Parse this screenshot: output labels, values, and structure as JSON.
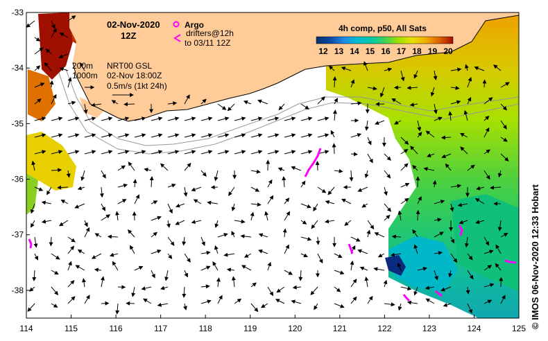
{
  "title": {
    "date": "02-Nov-2020",
    "hour": "12Z"
  },
  "legend": {
    "argo_label": "Argo",
    "drifters_label": "drifters@12h",
    "drifters_until": "to 03/11 12Z",
    "argo_color": "#ff00ff",
    "drifter_color": "#ff00ff"
  },
  "colorbar": {
    "title": "4h comp, p50, All Sats",
    "ticks": [
      "12",
      "13",
      "14",
      "15",
      "16",
      "17",
      "18",
      "19",
      "20"
    ],
    "colors": [
      "#08306b",
      "#0d47a1",
      "#1565c0",
      "#00acc1",
      "#00c9a7",
      "#3cd25a",
      "#7ed321",
      "#c8e000",
      "#f0c000",
      "#f08000",
      "#d84000",
      "#a01000",
      "#6b0000"
    ]
  },
  "info": {
    "isobath_200": "200m",
    "isobath_1000": "1000m",
    "source": "NRT00 GSL",
    "time": "02-Nov 18:00Z",
    "scale": "0.5m/s (1kt 24h)"
  },
  "axes": {
    "x_ticks": [
      "114",
      "115",
      "116",
      "117",
      "118",
      "119",
      "120",
      "121",
      "122",
      "123",
      "124",
      "125"
    ],
    "y_ticks": [
      "-33",
      "-34",
      "-35",
      "-36",
      "-37",
      "-38"
    ],
    "x_range": [
      114,
      125
    ],
    "y_range": [
      -38.5,
      -33
    ]
  },
  "credit": "© IMOS 06-Nov-2020 12:33 Hobart",
  "colors": {
    "land": "#ffcc99",
    "ocean": "#ffffff",
    "isobath": "#999999"
  }
}
